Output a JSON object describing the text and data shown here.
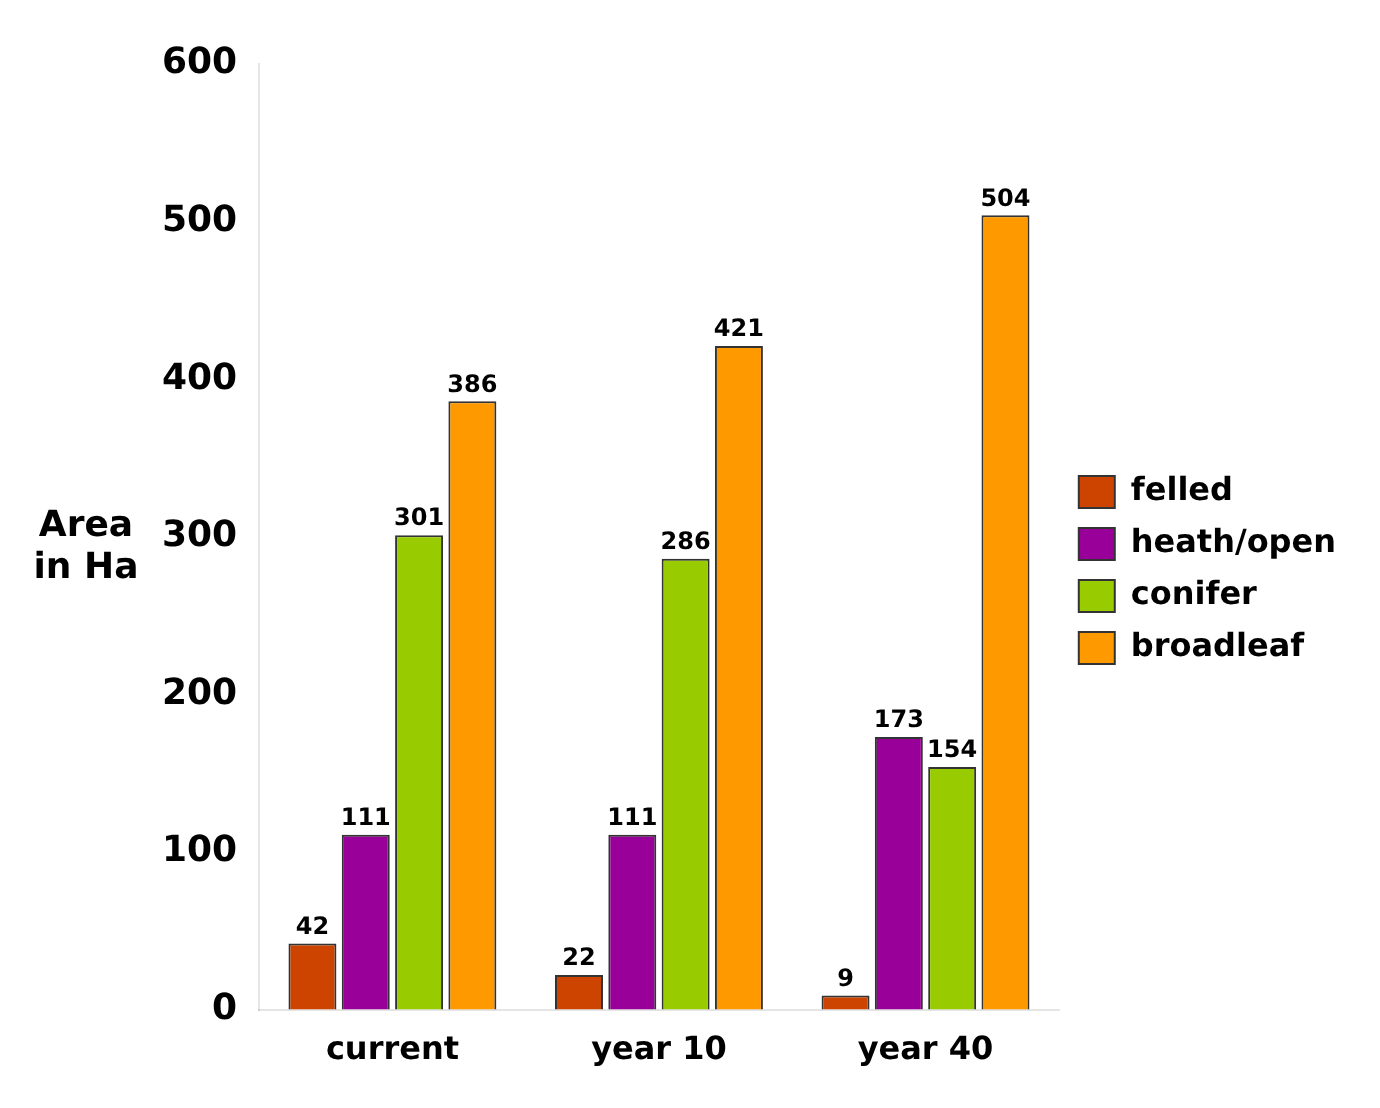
{
  "chart_data": {
    "type": "bar",
    "ylabel": "Area in Ha",
    "categories": [
      "current",
      "year 10",
      "year 40"
    ],
    "series": [
      {
        "name": "felled",
        "color": "#cc4400",
        "values": [
          42,
          22,
          9
        ]
      },
      {
        "name": "heath/open",
        "color": "#990099",
        "values": [
          111,
          111,
          173
        ]
      },
      {
        "name": "conifer",
        "color": "#99cc00",
        "values": [
          301,
          286,
          154
        ]
      },
      {
        "name": "broadleaf",
        "color": "#ff9900",
        "values": [
          386,
          421,
          504
        ]
      }
    ],
    "ylim": [
      0,
      600
    ],
    "yticks": [
      0,
      100,
      200,
      300,
      400,
      500,
      600
    ],
    "grid": false,
    "legend": "right",
    "data_labels": true
  }
}
